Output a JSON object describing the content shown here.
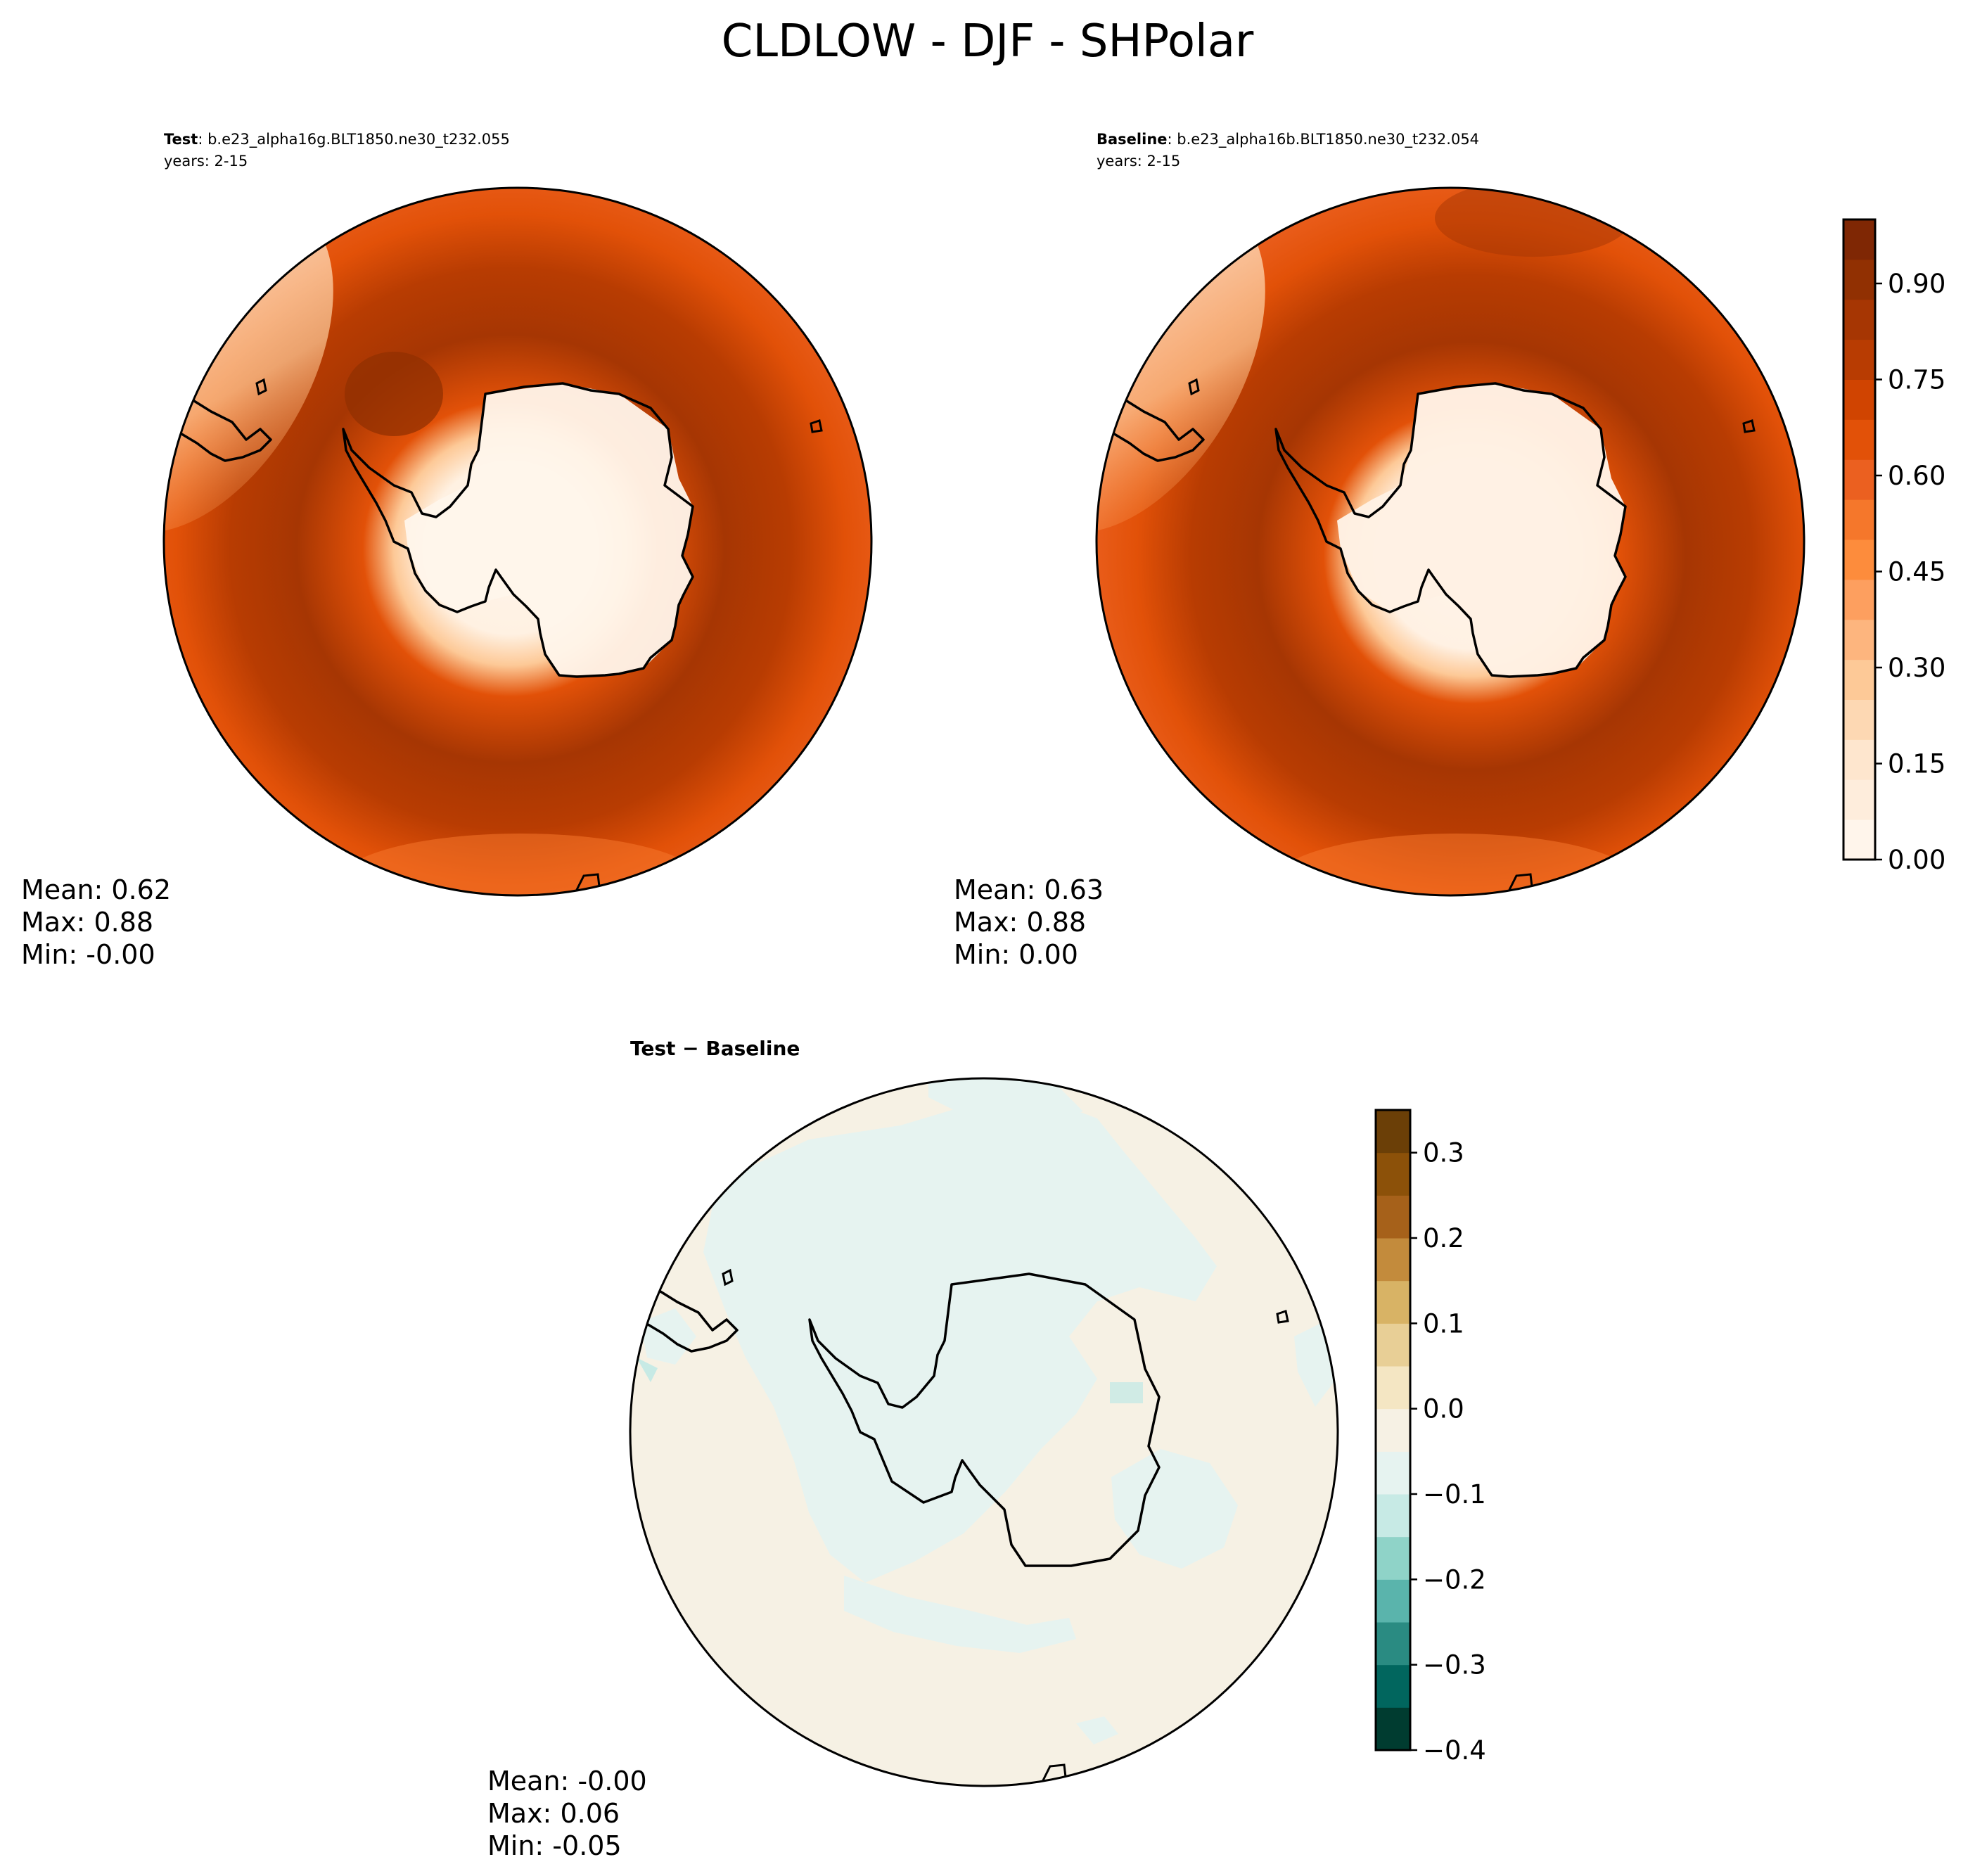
{
  "figure": {
    "title": "CLDLOW - DJF - SHPolar"
  },
  "panels": {
    "test": {
      "label_bold": "Test",
      "label_case": ": b.e23_alpha16g.BLT1850.ne30_t232.055",
      "years": "years: 2-15",
      "stats": {
        "mean": "Mean:  0.62",
        "max": "Max:  0.88",
        "min": "Min: -0.00"
      }
    },
    "baseline": {
      "label_bold": "Baseline",
      "label_case": ": b.e23_alpha16b.BLT1850.ne30_t232.054",
      "years": "years: 2-15",
      "stats": {
        "mean": "Mean:  0.63",
        "max": "Max:  0.88",
        "min": "Min:  0.00"
      }
    },
    "diff": {
      "label": "Test − Baseline",
      "stats": {
        "mean": "Mean: -0.00",
        "max": "Max:  0.06",
        "min": "Min: -0.05"
      }
    }
  },
  "chart_data": [
    {
      "type": "heatmap",
      "panel": "test",
      "projection": "south-polar-stereographic",
      "variable": "CLDLOW",
      "season": "DJF",
      "region": "SHPolar",
      "mean": 0.62,
      "max": 0.88,
      "min": -0.0,
      "colormap": "Oranges",
      "pattern": "Antarctic interior near 0.0-0.1; ring of 0.80-0.88 over Southern Ocean near 60S; 0.65-0.75 toward the edge; lower values near South America"
    },
    {
      "type": "heatmap",
      "panel": "baseline",
      "projection": "south-polar-stereographic",
      "variable": "CLDLOW",
      "season": "DJF",
      "region": "SHPolar",
      "mean": 0.63,
      "max": 0.88,
      "min": 0.0,
      "colormap": "Oranges",
      "pattern": "Antarctic interior near 0.0-0.05; ring of 0.80-0.88 over Southern Ocean near 60S; 0.65-0.75 toward the edge"
    },
    {
      "type": "heatmap",
      "panel": "diff",
      "projection": "south-polar-stereographic",
      "variable": "CLDLOW",
      "season": "DJF",
      "region": "SHPolar",
      "mean": -0.0,
      "max": 0.06,
      "min": -0.05,
      "colormap": "BrBG",
      "pattern": "Mostly -0.05 to 0.0 (pale tan); patches of 0.0 to 0.05 (pale teal) over Antarctica and Southern Ocean"
    }
  ],
  "colorbars": {
    "main": {
      "bounds": [
        0.0,
        1.0
      ],
      "ticks": [
        "0.00",
        "0.15",
        "0.30",
        "0.45",
        "0.60",
        "0.75",
        "0.90"
      ],
      "tick_values": [
        0.0,
        0.15,
        0.3,
        0.45,
        0.6,
        0.75,
        0.9
      ],
      "colors": [
        "#fff5eb",
        "#feeddc",
        "#fee6ce",
        "#fdd8b3",
        "#fdc997",
        "#fdb57e",
        "#fd9f5f",
        "#fd8c3c",
        "#f5772b",
        "#eb6020",
        "#e25108",
        "#d04401",
        "#b83c02",
        "#a63603",
        "#913002",
        "#7f2704"
      ]
    },
    "diff": {
      "bounds": [
        -0.4,
        0.35
      ],
      "ticks": [
        "0.3",
        "0.2",
        "0.1",
        "0.0",
        "−0.1",
        "−0.2",
        "−0.3",
        "−0.4"
      ],
      "tick_values": [
        0.3,
        0.2,
        0.1,
        0.0,
        -0.1,
        -0.2,
        -0.3,
        -0.4
      ],
      "colors": [
        "#003c30",
        "#01665e",
        "#2a8b82",
        "#5ab4ac",
        "#8fd3c8",
        "#c7eae5",
        "#e6f3f0",
        "#f6f1e4",
        "#f4e6c3",
        "#e8cf96",
        "#d8b365",
        "#c38b3c",
        "#a6611a",
        "#8c5109",
        "#6b3f07"
      ]
    }
  }
}
